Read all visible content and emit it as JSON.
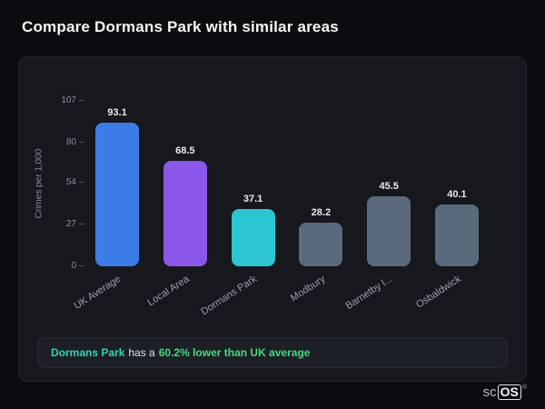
{
  "header": {
    "title": "Compare Dormans Park with similar areas"
  },
  "chart_data": {
    "type": "bar",
    "title": "Compare Dormans Park with similar areas",
    "categories": [
      "UK Average",
      "Local Area",
      "Dormans Park",
      "Modbury",
      "Barnetby l...",
      "Osbaldwick"
    ],
    "values": [
      93.1,
      68.5,
      37.1,
      28.2,
      45.5,
      40.1
    ],
    "bar_colors": [
      "#3c7ce7",
      "#8a57e8",
      "#2bc6d2",
      "#5a6a7c",
      "#5a6a7c",
      "#5a6a7c"
    ],
    "xlabel": "",
    "ylabel": "Crimes per 1,000",
    "yticks": [
      107,
      80,
      54,
      27,
      0
    ],
    "ylim": [
      0,
      107
    ],
    "grid": false,
    "legend": false
  },
  "summary": {
    "area": "Dormans Park",
    "middle": "has a",
    "stat": "60.2% lower than UK average"
  },
  "logo": {
    "sc": "sc",
    "os": "OS",
    "reg": "®"
  },
  "colors": {
    "background": "#0b0c10",
    "card": "#16181d",
    "summary_area": "#2fd3b5",
    "summary_stat": "#43da7f",
    "value_label": "#e8eaed",
    "axis_text": "#8a9099"
  }
}
